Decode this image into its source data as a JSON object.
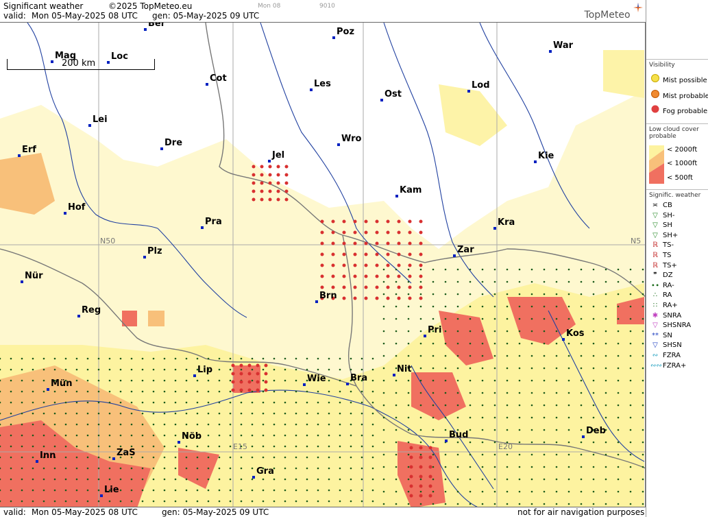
{
  "header": {
    "title": "Significant weather",
    "copyright": "©2025 TopMeteo.eu",
    "day_small": "Mon 08",
    "code_small": "9010",
    "valid_label": "valid:",
    "valid_time": "Mon  05-May-2025  08 UTC",
    "gen_time": "gen: 05-May-2025 09 UTC",
    "logo": "TopMeteo"
  },
  "footer": {
    "valid_label": "valid:",
    "valid_time": "Mon  05-May-2025  08 UTC",
    "gen_time": "gen: 05-May-2025 09 UTC",
    "disclaimer": "not for air navigation purposes"
  },
  "map": {
    "scale_label": "200 km",
    "grid_labels": {
      "n50_left": "N50",
      "n50_right": "N5",
      "e15": "E15",
      "e20": "E20"
    },
    "cities": [
      {
        "name": "Ber"
      },
      {
        "name": "Poz"
      },
      {
        "name": "War"
      },
      {
        "name": "Mag"
      },
      {
        "name": "Loc"
      },
      {
        "name": "Cot"
      },
      {
        "name": "Les"
      },
      {
        "name": "Ost"
      },
      {
        "name": "Lod"
      },
      {
        "name": "Lei"
      },
      {
        "name": "Dre"
      },
      {
        "name": "Wro"
      },
      {
        "name": "Erf"
      },
      {
        "name": "Jel"
      },
      {
        "name": "Kie"
      },
      {
        "name": "Kam"
      },
      {
        "name": "Hof"
      },
      {
        "name": "Pra"
      },
      {
        "name": "Kra"
      },
      {
        "name": "Plz"
      },
      {
        "name": "Zar"
      },
      {
        "name": "Nür"
      },
      {
        "name": "Brn"
      },
      {
        "name": "Reg"
      },
      {
        "name": "Pri"
      },
      {
        "name": "Kos"
      },
      {
        "name": "Lip"
      },
      {
        "name": "Nit"
      },
      {
        "name": "Mün"
      },
      {
        "name": "Wie"
      },
      {
        "name": "Bra"
      },
      {
        "name": "Deb"
      },
      {
        "name": "Nöb"
      },
      {
        "name": "Bud"
      },
      {
        "name": "Inn"
      },
      {
        "name": "ZaS"
      },
      {
        "name": "Gra"
      },
      {
        "name": "Lie"
      }
    ]
  },
  "legend": {
    "visibility_title": "Visibility",
    "visibility": [
      {
        "label": "Mist possible",
        "color": "#f5e04a"
      },
      {
        "label": "Mist probable",
        "color": "#f08a30"
      },
      {
        "label": "Fog probable",
        "color": "#e04040"
      }
    ],
    "lowcloud_title": "Low cloud cover probable",
    "lowcloud": [
      {
        "label": "< 2000ft",
        "color": "#fdf3a0"
      },
      {
        "label": "< 1000ft",
        "color": "#f8c07a"
      },
      {
        "label": "<   500ft",
        "color": "#f07060"
      }
    ],
    "signif_title": "Signific. weather",
    "signif": [
      {
        "label": "CB",
        "sym": "≍",
        "color": "#000"
      },
      {
        "label": "SH-",
        "sym": "▽",
        "color": "#2a8a2a"
      },
      {
        "label": "SH",
        "sym": "▽",
        "color": "#2a8a2a"
      },
      {
        "label": "SH+",
        "sym": "▽",
        "color": "#2a8a2a"
      },
      {
        "label": "TS-",
        "sym": "ℝ",
        "color": "#c02020"
      },
      {
        "label": "TS",
        "sym": "ℝ",
        "color": "#c02020"
      },
      {
        "label": "TS+",
        "sym": "ℝ",
        "color": "#c02020"
      },
      {
        "label": "DZ",
        "sym": "❞",
        "color": "#000"
      },
      {
        "label": "RA-",
        "sym": "∙∙",
        "color": "#1a6a1a"
      },
      {
        "label": "RA",
        "sym": "∴",
        "color": "#1a6a1a"
      },
      {
        "label": "RA+",
        "sym": "∷",
        "color": "#1a6a1a"
      },
      {
        "label": "SNRA",
        "sym": "✱",
        "color": "#c040c0"
      },
      {
        "label": "SHSNRA",
        "sym": "▽",
        "color": "#c040c0"
      },
      {
        "label": "SN",
        "sym": "**",
        "color": "#2040c0"
      },
      {
        "label": "SHSN",
        "sym": "▽",
        "color": "#2040c0"
      },
      {
        "label": "FZRA",
        "sym": "∾",
        "color": "#20a0c0"
      },
      {
        "label": "FZRA+",
        "sym": "∾∾",
        "color": "#20a0c0"
      }
    ]
  }
}
